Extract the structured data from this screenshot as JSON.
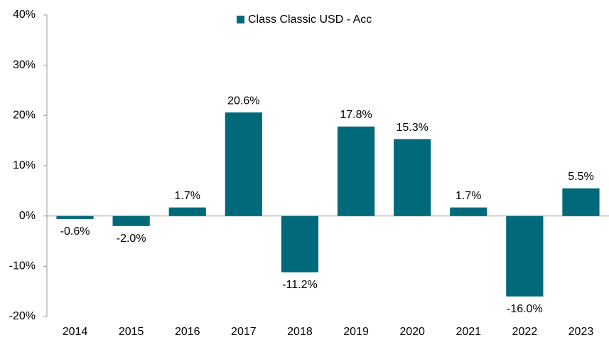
{
  "chart_data": {
    "type": "bar",
    "legend": "Class Classic USD - Acc",
    "legend_position": "top",
    "color": "#00697a",
    "categories": [
      "2014",
      "2015",
      "2016",
      "2017",
      "2018",
      "2019",
      "2020",
      "2021",
      "2022",
      "2023"
    ],
    "values": [
      -0.6,
      -2.0,
      1.7,
      20.6,
      -11.2,
      17.8,
      15.3,
      1.7,
      -16.0,
      5.5
    ],
    "value_labels": [
      "-0.6%",
      "-2.0%",
      "1.7%",
      "20.6%",
      "-11.2%",
      "17.8%",
      "15.3%",
      "1.7%",
      "-16.0%",
      "5.5%"
    ],
    "ylim": [
      -20,
      40
    ],
    "yticks": [
      {
        "value": -20,
        "label": "-20%"
      },
      {
        "value": -10,
        "label": "-10%"
      },
      {
        "value": 0,
        "label": "0%"
      },
      {
        "value": 10,
        "label": "10%"
      },
      {
        "value": 20,
        "label": "20%"
      },
      {
        "value": 30,
        "label": "30%"
      },
      {
        "value": 40,
        "label": "40%"
      }
    ],
    "grid": false
  }
}
